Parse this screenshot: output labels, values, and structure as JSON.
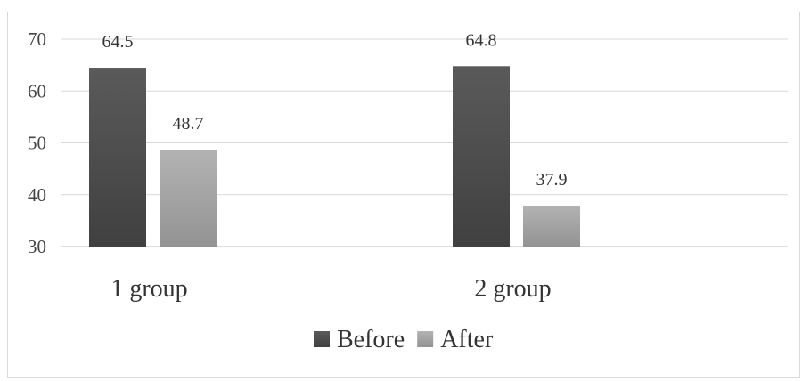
{
  "chart_data": {
    "type": "bar",
    "categories": [
      "1 group",
      "2 group"
    ],
    "series": [
      {
        "name": "Before",
        "values": [
          64.5,
          64.8
        ],
        "color": "#4d4d4d"
      },
      {
        "name": "After",
        "values": [
          48.7,
          37.9
        ],
        "color": "#a6a6a6"
      }
    ],
    "ylim": [
      30,
      70
    ],
    "yticks": [
      30,
      40,
      50,
      60,
      70
    ],
    "data_labels": true,
    "grid": true,
    "legend": "bottom"
  }
}
